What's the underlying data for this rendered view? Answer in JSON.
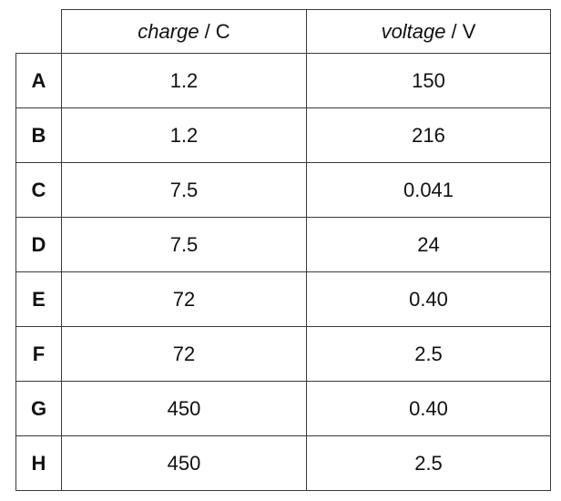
{
  "table": {
    "columns": [
      {
        "quantity": "charge",
        "unit": "/ C"
      },
      {
        "quantity": "voltage",
        "unit": "/ V"
      }
    ],
    "rows": [
      [
        "A",
        "1.2",
        "150"
      ],
      [
        "B",
        "1.2",
        "216"
      ],
      [
        "C",
        "7.5",
        "0.041"
      ],
      [
        "D",
        "7.5",
        "24"
      ],
      [
        "E",
        "72",
        "0.40"
      ],
      [
        "F",
        "72",
        "2.5"
      ],
      [
        "G",
        "450",
        "0.40"
      ],
      [
        "H",
        "450",
        "2.5"
      ]
    ]
  }
}
